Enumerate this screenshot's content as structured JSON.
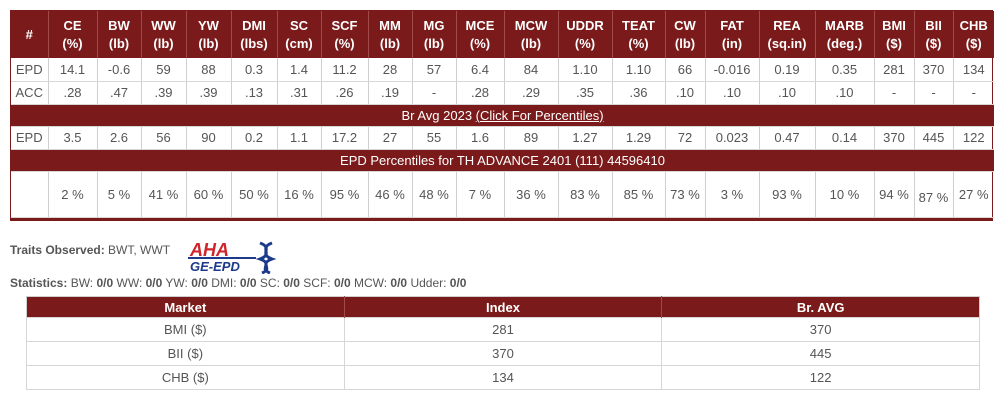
{
  "epd_table": {
    "headers": [
      {
        "l1": "#",
        "l2": ""
      },
      {
        "l1": "CE",
        "l2": "(%)"
      },
      {
        "l1": "BW",
        "l2": "(lb)"
      },
      {
        "l1": "WW",
        "l2": "(lb)"
      },
      {
        "l1": "YW",
        "l2": "(lb)"
      },
      {
        "l1": "DMI",
        "l2": "(lbs)"
      },
      {
        "l1": "SC",
        "l2": "(cm)"
      },
      {
        "l1": "SCF",
        "l2": "(%)"
      },
      {
        "l1": "MM",
        "l2": "(lb)"
      },
      {
        "l1": "MG",
        "l2": "(lb)"
      },
      {
        "l1": "MCE",
        "l2": "(%)"
      },
      {
        "l1": "MCW",
        "l2": "(lb)"
      },
      {
        "l1": "UDDR",
        "l2": "(%)"
      },
      {
        "l1": "TEAT",
        "l2": "(%)"
      },
      {
        "l1": "CW",
        "l2": "(lb)"
      },
      {
        "l1": "FAT",
        "l2": "(in)"
      },
      {
        "l1": "REA",
        "l2": "(sq.in)"
      },
      {
        "l1": "MARB",
        "l2": "(deg.)"
      },
      {
        "l1": "BMI",
        "l2": "($)"
      },
      {
        "l1": "BII",
        "l2": "($)"
      },
      {
        "l1": "CHB",
        "l2": "($)"
      }
    ],
    "epd_row": [
      "EPD",
      "14.1",
      "-0.6",
      "59",
      "88",
      "0.3",
      "1.4",
      "11.2",
      "28",
      "57",
      "6.4",
      "84",
      "1.10",
      "1.10",
      "66",
      "-0.016",
      "0.19",
      "0.35",
      "281",
      "370",
      "134"
    ],
    "acc_row": [
      "ACC",
      ".28",
      ".47",
      ".39",
      ".39",
      ".13",
      ".31",
      ".26",
      ".19",
      "-",
      ".28",
      ".29",
      ".35",
      ".36",
      ".10",
      ".10",
      ".10",
      ".10",
      "-",
      "-",
      "-"
    ],
    "avg_banner_prefix": "Br Avg 2023 ",
    "avg_banner_link": "(Click For Percentiles)",
    "avg_row": [
      "EPD",
      "3.5",
      "2.6",
      "56",
      "90",
      "0.2",
      "1.1",
      "17.2",
      "27",
      "55",
      "1.6",
      "89",
      "1.27",
      "1.29",
      "72",
      "0.023",
      "0.47",
      "0.14",
      "370",
      "445",
      "122"
    ],
    "pct_banner": "EPD Percentiles for TH ADVANCE 2401 (111) 44596410",
    "pct_row": [
      "",
      "2 %",
      "5 %",
      "41 %",
      "60 %",
      "50 %",
      "16 %",
      "95 %",
      "46 %",
      "48 %",
      "7 %",
      "36 %",
      "83 %",
      "85 %",
      "73 %",
      "3 %",
      "93 %",
      "10 %",
      "94 %",
      "87 %",
      "27 %"
    ]
  },
  "traits": {
    "label": "Traits Observed:",
    "value": " BWT, WWT"
  },
  "logo": {
    "top": "AHA",
    "bottom": "GE-EPD",
    "colors": {
      "blue": "#1c3a8a",
      "red": "#d0232a"
    }
  },
  "stats": [
    {
      "label": "Statistics:",
      "value": ""
    },
    {
      "label": " BW: ",
      "value": "0/0"
    },
    {
      "label": " WW: ",
      "value": "0/0"
    },
    {
      "label": " YW: ",
      "value": "0/0"
    },
    {
      "label": " DMI: ",
      "value": "0/0"
    },
    {
      "label": " SC: ",
      "value": "0/0"
    },
    {
      "label": " SCF: ",
      "value": "0/0"
    },
    {
      "label": " MCW: ",
      "value": "0/0"
    },
    {
      "label": " Udder: ",
      "value": "0/0"
    }
  ],
  "index_table": {
    "headers": [
      "Market",
      "Index",
      "Br. AVG"
    ],
    "rows": [
      [
        "BMI ($)",
        "281",
        "370"
      ],
      [
        "BII ($)",
        "370",
        "445"
      ],
      [
        "CHB ($)",
        "134",
        "122"
      ]
    ]
  },
  "colors": {
    "brand": "#7a1a1a"
  }
}
